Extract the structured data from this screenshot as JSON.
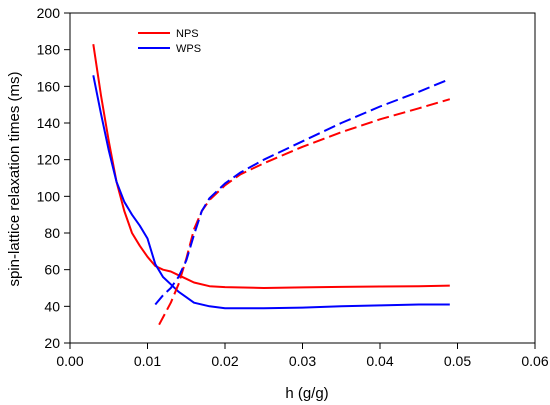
{
  "chart_data": {
    "type": "line",
    "xlabel": "h (g/g)",
    "ylabel": "spin-lattice relaxation times (ms)",
    "xlim": [
      0.0,
      0.06
    ],
    "ylim": [
      20,
      200
    ],
    "xticks": [
      "0.00",
      "0.01",
      "0.02",
      "0.03",
      "0.04",
      "0.05",
      "0.06"
    ],
    "yticks": [
      "20",
      "40",
      "60",
      "80",
      "100",
      "120",
      "140",
      "160",
      "180",
      "200"
    ],
    "grid": false,
    "legend_position": "top-left",
    "series": [
      {
        "name": "NPS",
        "color": "#ff0000",
        "style": "solid",
        "x": [
          0.003,
          0.004,
          0.005,
          0.006,
          0.007,
          0.008,
          0.009,
          0.01,
          0.011,
          0.012,
          0.013,
          0.014,
          0.015,
          0.016,
          0.018,
          0.02,
          0.025,
          0.03,
          0.035,
          0.04,
          0.045,
          0.049
        ],
        "y": [
          183,
          155,
          130,
          108,
          92,
          80,
          73,
          67,
          62,
          60,
          59,
          57,
          55,
          53,
          51,
          50.5,
          50,
          50.3,
          50.6,
          50.8,
          51,
          51.3
        ]
      },
      {
        "name": "WPS",
        "color": "#0000ff",
        "style": "solid",
        "x": [
          0.003,
          0.004,
          0.005,
          0.006,
          0.007,
          0.008,
          0.009,
          0.01,
          0.011,
          0.012,
          0.013,
          0.014,
          0.015,
          0.016,
          0.018,
          0.02,
          0.025,
          0.03,
          0.035,
          0.04,
          0.045,
          0.049
        ],
        "y": [
          166,
          145,
          125,
          108,
          97,
          90,
          84,
          77,
          63,
          56,
          52,
          48,
          45,
          42,
          40,
          39,
          39,
          39.3,
          40,
          40.5,
          41,
          41
        ]
      },
      {
        "name": "",
        "color": "#ff0000",
        "style": "dashed",
        "x": [
          0.0115,
          0.013,
          0.014,
          0.015,
          0.016,
          0.017,
          0.018,
          0.02,
          0.022,
          0.025,
          0.03,
          0.035,
          0.04,
          0.045,
          0.049
        ],
        "y": [
          30,
          42,
          52,
          66,
          82,
          92,
          98,
          106,
          112,
          118,
          127,
          135,
          142,
          148,
          153
        ]
      },
      {
        "name": "",
        "color": "#0000ff",
        "style": "dashed",
        "x": [
          0.011,
          0.012,
          0.013,
          0.014,
          0.015,
          0.016,
          0.017,
          0.018,
          0.02,
          0.022,
          0.025,
          0.03,
          0.035,
          0.04,
          0.045,
          0.049
        ],
        "y": [
          41,
          46,
          50,
          56,
          65,
          79,
          92,
          99,
          107,
          113,
          120,
          130,
          140,
          149,
          157,
          164
        ]
      }
    ]
  }
}
